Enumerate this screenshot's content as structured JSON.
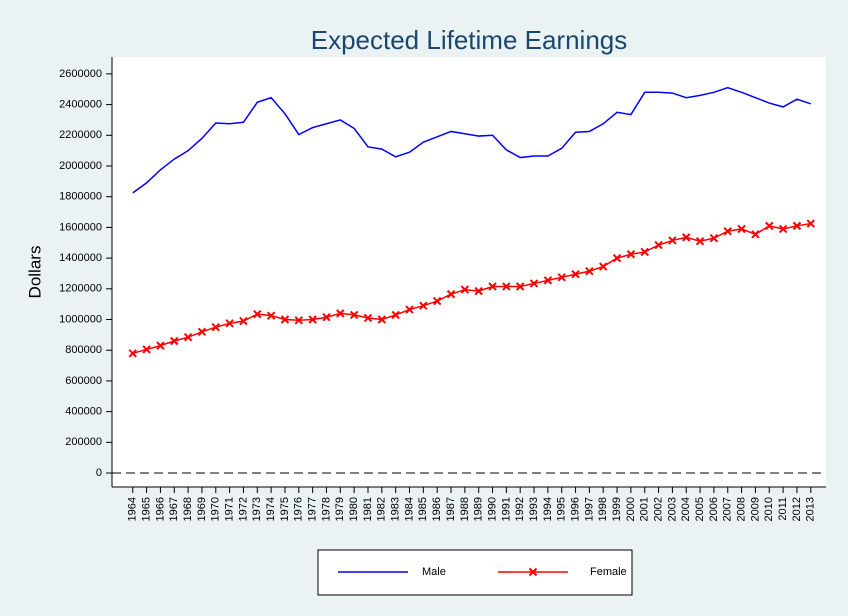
{
  "chart_data": {
    "type": "line",
    "title": "Expected Lifetime Earnings",
    "ylabel": "Dollars",
    "x": [
      1964,
      1965,
      1966,
      1967,
      1968,
      1969,
      1970,
      1971,
      1972,
      1973,
      1974,
      1975,
      1976,
      1977,
      1978,
      1979,
      1980,
      1981,
      1982,
      1983,
      1984,
      1985,
      1986,
      1987,
      1988,
      1989,
      1990,
      1991,
      1992,
      1993,
      1994,
      1995,
      1996,
      1997,
      1998,
      1999,
      2000,
      2001,
      2002,
      2003,
      2004,
      2005,
      2006,
      2007,
      2008,
      2009,
      2010,
      2011,
      2012,
      2013
    ],
    "series": [
      {
        "name": "Male",
        "color": "#0000ff",
        "marker": "none",
        "values": [
          1825000,
          1890000,
          1975000,
          2045000,
          2100000,
          2180000,
          2280000,
          2275000,
          2285000,
          2415000,
          2445000,
          2340000,
          2205000,
          2250000,
          2275000,
          2300000,
          2245000,
          2125000,
          2110000,
          2060000,
          2090000,
          2155000,
          2190000,
          2225000,
          2210000,
          2195000,
          2200000,
          2105000,
          2055000,
          2065000,
          2065000,
          2115000,
          2220000,
          2225000,
          2275000,
          2350000,
          2335000,
          2480000,
          2480000,
          2475000,
          2445000,
          2460000,
          2480000,
          2510000,
          2480000,
          2445000,
          2410000,
          2385000,
          2435000,
          2405000
        ]
      },
      {
        "name": "Female",
        "color": "#ff0000",
        "marker": "x",
        "values": [
          780000,
          805000,
          830000,
          860000,
          885000,
          920000,
          950000,
          975000,
          990000,
          1035000,
          1025000,
          1000000,
          995000,
          1000000,
          1015000,
          1040000,
          1030000,
          1010000,
          1000000,
          1030000,
          1065000,
          1090000,
          1120000,
          1165000,
          1195000,
          1185000,
          1215000,
          1215000,
          1215000,
          1235000,
          1255000,
          1275000,
          1295000,
          1315000,
          1345000,
          1400000,
          1425000,
          1440000,
          1485000,
          1515000,
          1535000,
          1510000,
          1530000,
          1575000,
          1590000,
          1555000,
          1610000,
          1590000,
          1610000,
          1625000
        ]
      }
    ],
    "xlim": [
      1962.5,
      2014.1
    ],
    "ylim": [
      -91000,
      2710000
    ],
    "yticks": [
      0,
      200000,
      400000,
      600000,
      800000,
      1000000,
      1200000,
      1400000,
      1600000,
      1800000,
      2000000,
      2200000,
      2400000,
      2600000
    ],
    "yline": 0,
    "legend": "bottom",
    "grid": false
  }
}
